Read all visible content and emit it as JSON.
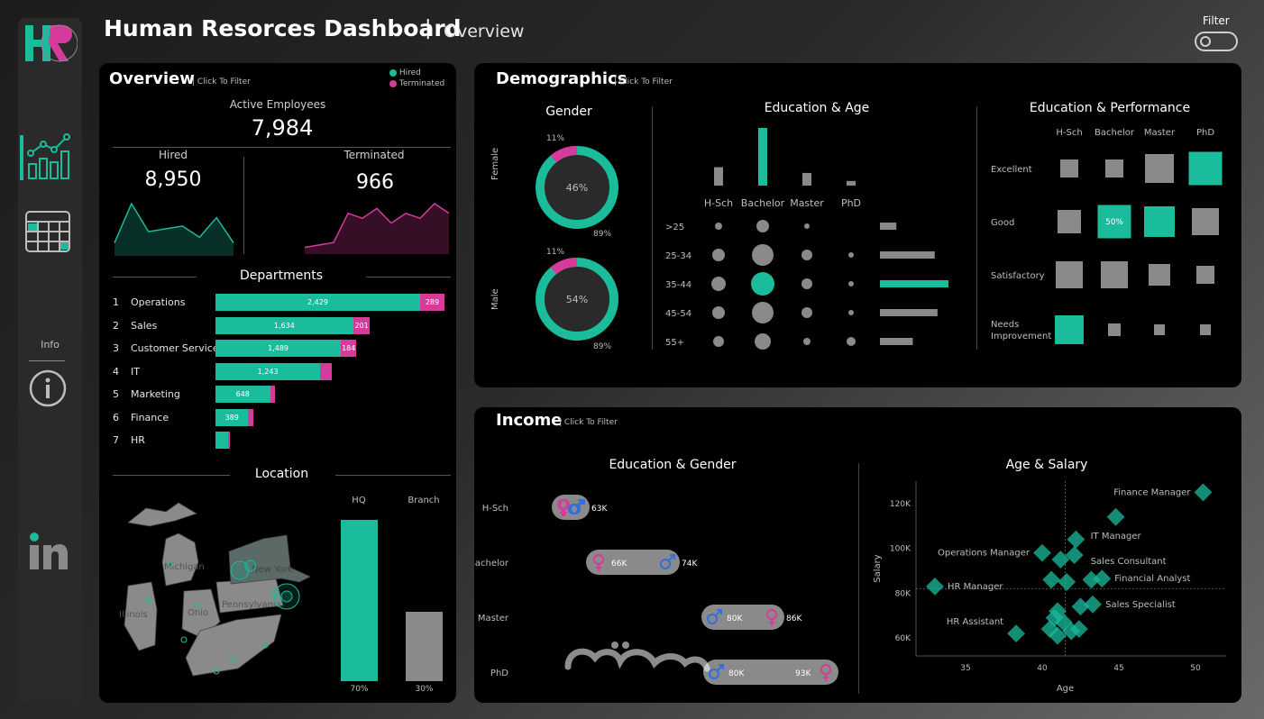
{
  "header": {
    "title": "Human Resorces Dashboard",
    "separator": "|",
    "subtitle": "Overview",
    "filter_label": "Filter"
  },
  "rail": {
    "logo_text": "HR",
    "info_label": "Info",
    "linkedin_text": "in"
  },
  "overview": {
    "title": "Overview",
    "click_to_filter": "| Click To Filter",
    "legend": {
      "hired": "Hired",
      "terminated": "Terminated"
    },
    "active_label": "Active Employees",
    "active_value": "7,984",
    "hired_label": "Hired",
    "hired_value": "8,950",
    "terminated_label": "Terminated",
    "terminated_value": "966",
    "hired_trend": [
      2,
      9,
      4,
      4.5,
      5,
      3,
      6.5,
      2
    ],
    "terminated_trend": [
      1,
      1.5,
      2,
      8,
      7,
      9,
      6,
      8,
      7,
      10,
      8
    ]
  },
  "departments": {
    "title": "Departments",
    "items": [
      {
        "rank": "1",
        "name": "Operations",
        "hired": 2429,
        "terminated": 289,
        "hired_label": "2,429",
        "terminated_label": "289"
      },
      {
        "rank": "2",
        "name": "Sales",
        "hired": 1634,
        "terminated": 201,
        "hired_label": "1,634",
        "terminated_label": "201"
      },
      {
        "rank": "3",
        "name": "Customer Service",
        "hired": 1489,
        "terminated": 184,
        "hired_label": "1,489",
        "terminated_label": "184"
      },
      {
        "rank": "4",
        "name": "IT",
        "hired": 1243,
        "terminated": 140,
        "hired_label": "1,243",
        "terminated_label": ""
      },
      {
        "rank": "5",
        "name": "Marketing",
        "hired": 648,
        "terminated": 60,
        "hired_label": "648",
        "terminated_label": ""
      },
      {
        "rank": "6",
        "name": "Finance",
        "hired": 389,
        "terminated": 60,
        "hired_label": "389",
        "terminated_label": ""
      },
      {
        "rank": "7",
        "name": "HR",
        "hired": 150,
        "terminated": 20,
        "hired_label": "",
        "terminated_label": ""
      }
    ]
  },
  "location": {
    "title": "Location",
    "states": [
      "Michigan",
      "New York",
      "Illinois",
      "Ohio",
      "Pennsylvania"
    ],
    "hq_label": "HQ",
    "branch_label": "Branch",
    "hq_pct": 0.7,
    "branch_pct": 0.3,
    "hq_pct_label": "70%",
    "branch_pct_label": "30%"
  },
  "demographics": {
    "title": "Demographics",
    "click_to_filter": "| Click To Filter",
    "gender": {
      "title": "Gender",
      "female": {
        "label": "Female",
        "center": "46%",
        "top": "11%",
        "bottom": "89%",
        "share": 0.11
      },
      "male": {
        "label": "Male",
        "center": "54%",
        "top": "11%",
        "bottom": "89%",
        "share": 0.11
      }
    },
    "education_age": {
      "title": "Education & Age",
      "columns": [
        "H-Sch",
        "Bachelor",
        "Master",
        "PhD"
      ],
      "col_bars": [
        0.32,
        1.0,
        0.22,
        0.08
      ],
      "rows": [
        ">25",
        "25-34",
        "35-44",
        "45-54",
        "55+"
      ],
      "row_bars": [
        0.24,
        0.8,
        1.0,
        0.84,
        0.48
      ]
    },
    "education_performance": {
      "title": "Education & Performance",
      "columns": [
        "H-Sch",
        "Bachelor",
        "Master",
        "PhD"
      ],
      "rows": [
        "Excellent",
        "Good",
        "Satisfactory",
        "Needs Improvement"
      ],
      "highlight_label": "50%"
    }
  },
  "income": {
    "title": "Income",
    "click_to_filter": "| Click To Filter",
    "education_gender": {
      "title": "Education & Gender",
      "rows": [
        {
          "label": "H-Sch",
          "left": "",
          "right": "63K"
        },
        {
          "label": "Bachelor",
          "left": "66K",
          "right": "74K"
        },
        {
          "label": "Master",
          "left": "80K",
          "right": "86K"
        },
        {
          "label": "PhD",
          "left": "80K",
          "right": "93K"
        }
      ]
    },
    "age_salary": {
      "title": "Age & Salary",
      "xlabel": "Age",
      "ylabel": "Salary",
      "x_ticks": [
        "35",
        "40",
        "45",
        "50"
      ],
      "y_ticks": [
        "120K",
        "100K",
        "80K",
        "60K"
      ],
      "labels": [
        "Finance Manager",
        "IT Manager",
        "Operations Manager",
        "Sales Consultant",
        "Financial Analyst",
        "HR Manager",
        "Sales Specialist",
        "HR Assistant"
      ]
    }
  },
  "chart_data": [
    {
      "type": "bar",
      "title": "Departments",
      "categories": [
        "Operations",
        "Sales",
        "Customer Service",
        "IT",
        "Marketing",
        "Finance",
        "HR"
      ],
      "series": [
        {
          "name": "Hired",
          "values": [
            2429,
            1634,
            1489,
            1243,
            648,
            389,
            150
          ]
        },
        {
          "name": "Terminated",
          "values": [
            289,
            201,
            184,
            140,
            60,
            60,
            20
          ]
        }
      ]
    },
    {
      "type": "scatter",
      "title": "Age & Salary",
      "xlabel": "Age",
      "ylabel": "Salary",
      "xlim": [
        32,
        52
      ],
      "ylim": [
        52000,
        130000
      ],
      "points": [
        {
          "label": "Finance Manager",
          "x": 50.5,
          "y": 125000
        },
        {
          "label": "IT Manager",
          "x": 44.8,
          "y": 114000
        },
        {
          "label": "",
          "x": 42.2,
          "y": 104000
        },
        {
          "label": "Operations Manager",
          "x": 40.0,
          "y": 98000
        },
        {
          "label": "",
          "x": 41.2,
          "y": 95000
        },
        {
          "label": "Sales Consultant",
          "x": 42.1,
          "y": 97000
        },
        {
          "label": "",
          "x": 40.6,
          "y": 86000
        },
        {
          "label": "",
          "x": 41.6,
          "y": 85000
        },
        {
          "label": "",
          "x": 43.2,
          "y": 86000
        },
        {
          "label": "Financial Analyst",
          "x": 43.9,
          "y": 86500
        },
        {
          "label": "HR Manager",
          "x": 33.0,
          "y": 83000
        },
        {
          "label": "Sales Specialist",
          "x": 43.3,
          "y": 75000
        },
        {
          "label": "",
          "x": 42.5,
          "y": 74000
        },
        {
          "label": "",
          "x": 41.0,
          "y": 72000
        },
        {
          "label": "",
          "x": 40.8,
          "y": 69000
        },
        {
          "label": "",
          "x": 41.4,
          "y": 67000
        },
        {
          "label": "",
          "x": 40.5,
          "y": 64000
        },
        {
          "label": "",
          "x": 41.9,
          "y": 63000
        },
        {
          "label": "",
          "x": 42.4,
          "y": 64000
        },
        {
          "label": "",
          "x": 41.0,
          "y": 61000
        },
        {
          "label": "HR Assistant",
          "x": 38.3,
          "y": 62000
        }
      ]
    }
  ],
  "colors": {
    "teal": "#1abc9c",
    "pink": "#d63a9a",
    "grey": "#8a8a8a",
    "panel": "#000000"
  }
}
